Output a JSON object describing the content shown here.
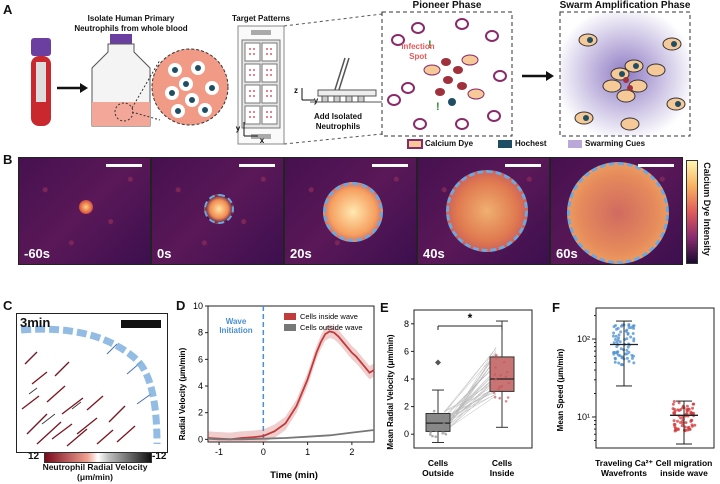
{
  "panels": {
    "A": "A",
    "B": "B",
    "C": "C",
    "D": "D",
    "E": "E",
    "F": "F"
  },
  "panel_a": {
    "isolate_line1": "Isolate Human Primary",
    "isolate_line2": "Neutrophils from whole blood",
    "target_patterns": "Target Patterns",
    "add_line1": "Add Isolated",
    "add_line2": "Neutrophils",
    "axis_y": "y",
    "axis_x": "x",
    "axis_z": "z",
    "axis_y2": "y",
    "pioneer_phase": "Pioneer Phase",
    "swarm_phase": "Swarm Amplification Phase",
    "infection_line1": "Infection",
    "infection_line2": "Spot",
    "legend_calcium": "Calcium Dye",
    "legend_hochest": "Hochest",
    "legend_swarming": "Swarming Cues",
    "colors": {
      "blood": "#c8282e",
      "cell": "#f6c998",
      "nucleus": "#1f4e64",
      "swarm": "#b9a8d8",
      "infection": "#e8585a"
    }
  },
  "panel_b": {
    "frames": [
      "-60s",
      "0s",
      "20s",
      "40s",
      "60s"
    ],
    "colorbar_label": "Calcium Dye Intensity"
  },
  "panel_c": {
    "time": "3min",
    "cb_min": "12",
    "cb_max": "-12",
    "cb_line1": "Neutrophil Radial Velocity",
    "cb_line2": "(μm/min)"
  },
  "chart_data": [
    {
      "id": "D",
      "type": "line",
      "title": "",
      "xlabel": "Time (min)",
      "ylabel": "Radial Velocity (μm/min)",
      "xlim": [
        -1.25,
        2.5
      ],
      "ylim": [
        -0.2,
        10
      ],
      "xticks": [
        "-1",
        "0",
        "1",
        "2"
      ],
      "yticks": [
        "0",
        "2",
        "4",
        "6",
        "8",
        "10"
      ],
      "annotation_line1": "Wave",
      "annotation_line2": "Initiation",
      "series": [
        {
          "name": "Cells inside wave",
          "color": "#c23b3b",
          "x": [
            -1.25,
            -1,
            -0.75,
            -0.5,
            -0.25,
            0,
            0.25,
            0.5,
            0.75,
            1,
            1.1,
            1.2,
            1.3,
            1.4,
            1.5,
            1.6,
            1.7,
            1.8,
            1.9,
            2,
            2.1,
            2.2,
            2.3,
            2.4,
            2.5
          ],
          "y": [
            0.1,
            0.05,
            0,
            0.1,
            0.15,
            0.25,
            0.6,
            1.2,
            2.5,
            4.5,
            5.5,
            6.5,
            7.3,
            7.9,
            8.1,
            8.0,
            7.7,
            7.3,
            6.9,
            6.5,
            6.2,
            5.8,
            5.4,
            5.0,
            5.2
          ]
        },
        {
          "name": "Cells outside wave",
          "color": "#777777",
          "x": [
            -1.25,
            -1,
            -0.5,
            0,
            0.5,
            1,
            1.5,
            2,
            2.5
          ],
          "y": [
            0.05,
            0,
            0,
            0.05,
            0.1,
            0.2,
            0.3,
            0.5,
            0.7
          ]
        }
      ]
    },
    {
      "id": "E",
      "type": "box",
      "ylabel": "Mean Radial Velocity (μm/min)",
      "ylim": [
        -1,
        9
      ],
      "yticks": [
        "0",
        "2",
        "4",
        "6",
        "8"
      ],
      "categories": [
        "Cells Outside",
        "Cells Inside"
      ],
      "boxes": [
        {
          "name": "Cells Outside",
          "min": -0.6,
          "q1": 0.2,
          "median": 0.8,
          "q3": 1.5,
          "max": 3.2,
          "outlier": 5.2,
          "color": "#888888"
        },
        {
          "name": "Cells Inside",
          "min": 0.5,
          "q1": 3.1,
          "median": 4.0,
          "q3": 5.6,
          "max": 8.2,
          "color": "#c87474"
        }
      ],
      "significance": "*"
    },
    {
      "id": "F",
      "type": "scatter",
      "ylabel": "Mean Speed (μm/min)",
      "yscale": "log",
      "ylim": [
        4,
        250
      ],
      "yticks": [
        "10¹",
        "10²"
      ],
      "categories": [
        "Traveling Ca²⁺ Wavefronts",
        "Cell migration inside wave"
      ],
      "groups": [
        {
          "name": "Traveling Ca²⁺ Wavefronts",
          "median": 85,
          "q1": 60,
          "q3": 120,
          "min": 25,
          "max": 170,
          "color": "#4a8fd0"
        },
        {
          "name": "Cell migration inside wave",
          "median": 10.5,
          "q1": 8,
          "q3": 13,
          "min": 4.5,
          "max": 16,
          "color": "#d23a3a"
        }
      ]
    }
  ]
}
